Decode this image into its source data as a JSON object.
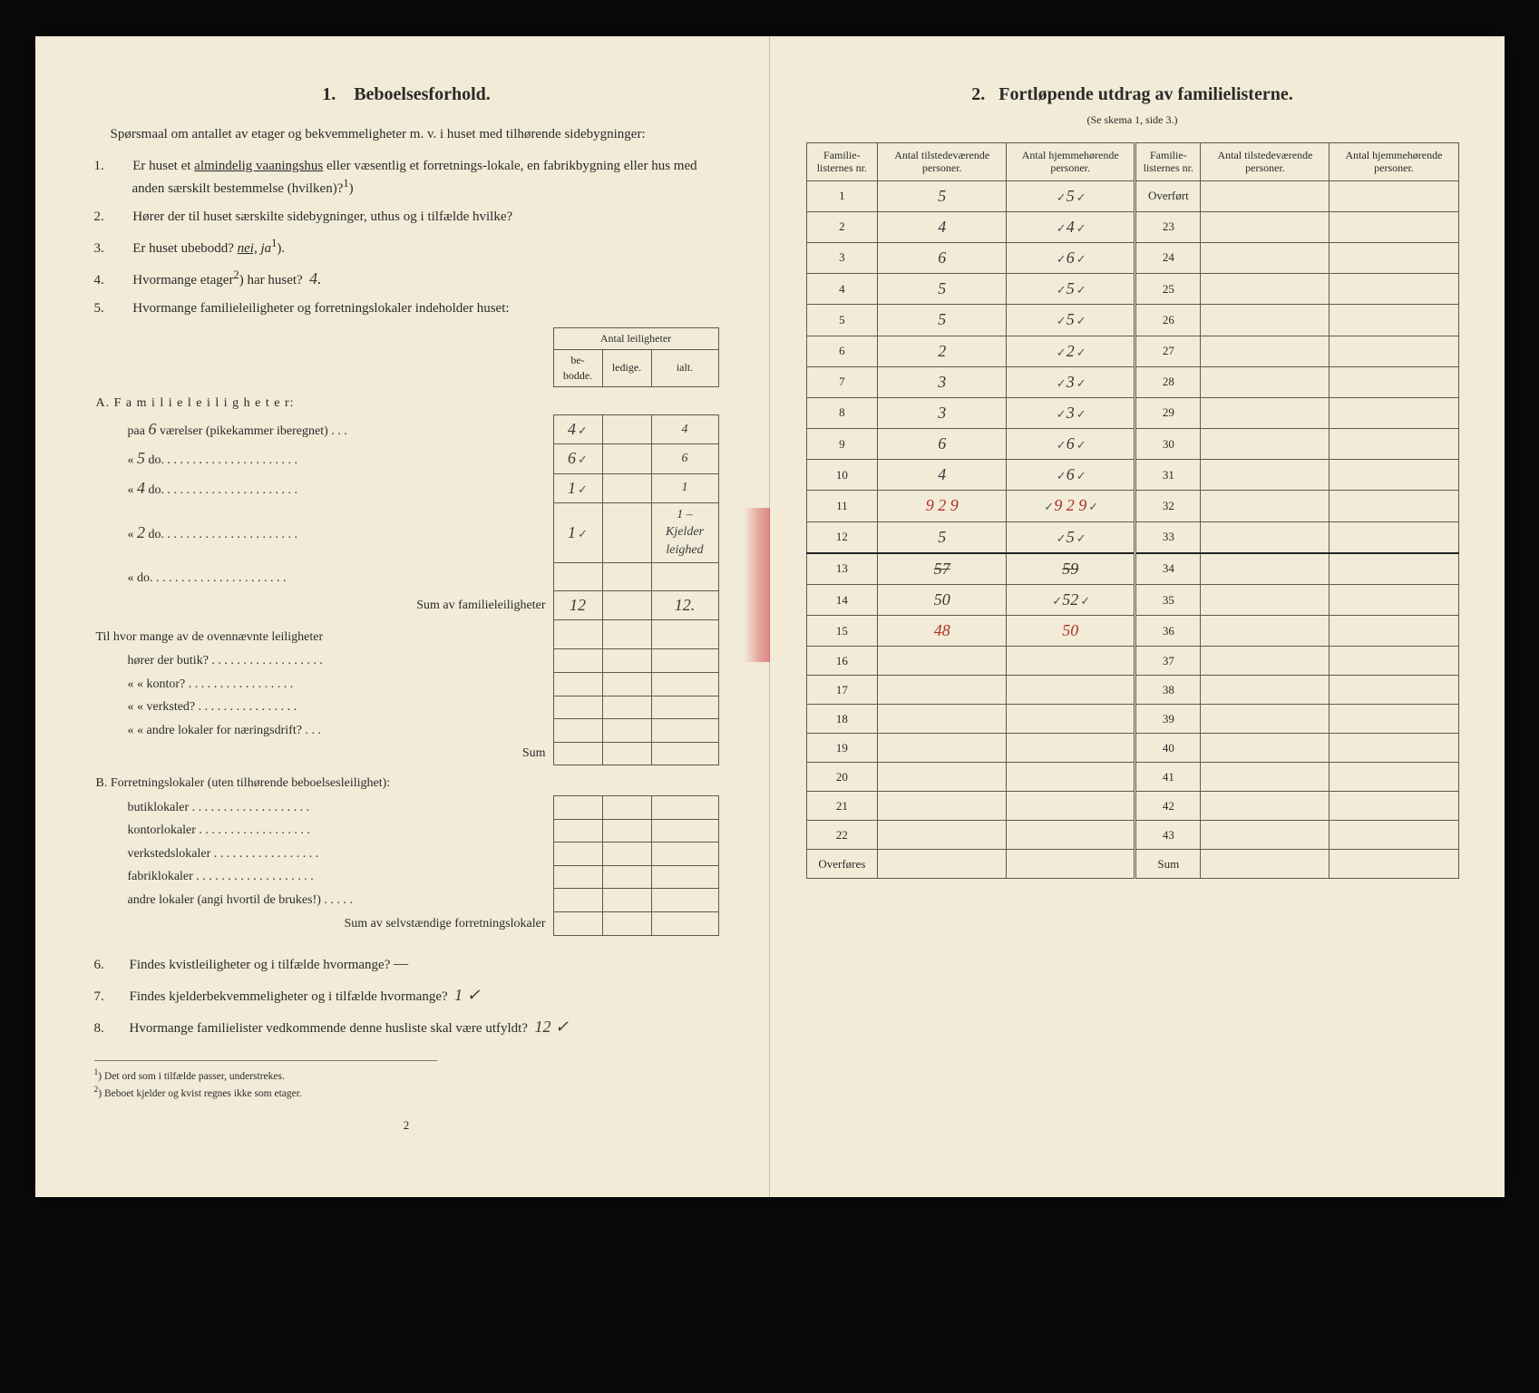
{
  "left": {
    "section_no": "1.",
    "section_title": "Beboelsesforhold.",
    "intro": "Spørsmaal om antallet av etager og bekvemmeligheter m. v. i huset med tilhørende sidebygninger:",
    "q1_pre": "Er huset et ",
    "q1_underlined": "almindelig vaaningshus",
    "q1_post": " eller væsentlig et forretnings-lokale, en fabrikbygning eller hus med anden særskilt bestemmelse (hvilken)?",
    "q1_sup": "1",
    "q2": "Hører der til huset særskilte sidebygninger, uthus og i tilfælde hvilke?",
    "q3_pre": "Er huset ubebodd?  ",
    "q3_nei": "nei,",
    "q3_ja": "ja",
    "q3_sup": "1",
    "q4_pre": "Hvormange etager",
    "q4_sup": "2",
    "q4_post": ") har huset?",
    "q4_ans": "4.",
    "q5": "Hvormange familieleiligheter og forretningslokaler indeholder huset:",
    "tbl_header_group": "Antal leiligheter",
    "tbl_h_be": "be-\nbodde.",
    "tbl_h_ledige": "ledige.",
    "tbl_h_ialt": "ialt.",
    "A_label": "A.  F a m i l i e l e i l i g h e t e r:",
    "A_rows": [
      {
        "pre": "paa",
        "rooms": "6",
        "post": "værelser (pikekammer iberegnet) . . .",
        "be": "4",
        "ledige": "",
        "ialt": "4"
      },
      {
        "pre": "«",
        "rooms": "5",
        "post": "do.  . . . . . . . . . . . . . . . . . . . . .",
        "be": "6",
        "ledige": "",
        "ialt": "6"
      },
      {
        "pre": "«",
        "rooms": "4",
        "post": "do.  . . . . . . . . . . . . . . . . . . . . .",
        "be": "1",
        "ledige": "",
        "ialt": "1"
      },
      {
        "pre": "«",
        "rooms": "2",
        "post": "do.  . . . . . . . . . . . . . . . . . . . . .",
        "be": "1",
        "ledige": "",
        "ialt": "1 – Kjelder leighed"
      },
      {
        "pre": "«",
        "rooms": "",
        "post": "do.  . . . . . . . . . . . . . . . . . . . . .",
        "be": "",
        "ledige": "",
        "ialt": ""
      }
    ],
    "A_sum_label": "Sum av familieleiligheter",
    "A_sum_be": "12",
    "A_sum_ialt": "12.",
    "mid_q_lead": "Til hvor mange av de ovennævnte leiligheter",
    "mid_rows": [
      "hører der butik? . . . . . . . . . . . . . . . . . .",
      "«      «   kontor? . . . . . . . . . . . . . . . . .",
      "«      «   verksted? . . . . . . . . . . . . . . . .",
      "«      «   andre lokaler for næringsdrift? . . ."
    ],
    "mid_sum": "Sum",
    "B_label": "B.  Forretningslokaler (uten tilhørende beboelsesleilighet):",
    "B_rows": [
      "butiklokaler . . . . . . . . . . . . . . . . . . .",
      "kontorlokaler  . . . . . . . . . . . . . . . . . .",
      "verkstedslokaler . . . . . . . . . . . . . . . . .",
      "fabriklokaler . . . . . . . . . . . . . . . . . . .",
      "andre lokaler (angi hvortil de brukes!) . . . . ."
    ],
    "B_sum": "Sum av selvstændige forretningslokaler",
    "q6": "Findes kvistleiligheter og i tilfælde hvormange?",
    "q6_ans": "—",
    "q7": "Findes kjelderbekvemmeligheter og i tilfælde hvormange?",
    "q7_ans": "1 ✓",
    "q8_pre": "Hvormange familielister vedkommende denne husliste skal være utfyldt?",
    "q8_ans": "12 ✓",
    "fn1": "Det ord som i tilfælde passer, understrekes.",
    "fn2": "Beboet kjelder og kvist regnes ikke som etager.",
    "pagenum": "2"
  },
  "right": {
    "section_no": "2.",
    "section_title": "Fortløpende utdrag av familielisterne.",
    "subnote": "(Se skema 1, side 3.)",
    "headers": {
      "nr": "Familie-\nlisternes\nnr.",
      "tilstede": "Antal\ntilstedeværende\npersoner.",
      "hjemme": "Antal\nhjemmehørende\npersoner."
    },
    "overfort": "Overført",
    "overfores": "Overføres",
    "sum": "Sum",
    "rows_left": [
      {
        "nr": "1",
        "a": "5",
        "b": "5",
        "tick": true
      },
      {
        "nr": "2",
        "a": "4",
        "b": "4",
        "tick": true,
        "a_strike": false,
        "a_bold": true
      },
      {
        "nr": "3",
        "a": "6",
        "b": "6",
        "tick": true
      },
      {
        "nr": "4",
        "a": "5",
        "b": "5",
        "tick": true
      },
      {
        "nr": "5",
        "a": "5",
        "b": "5",
        "tick": true
      },
      {
        "nr": "6",
        "a": "2",
        "b": "2",
        "tick": true
      },
      {
        "nr": "7",
        "a": "3",
        "b": "3",
        "tick": true
      },
      {
        "nr": "8",
        "a": "3",
        "b": "3",
        "tick": true
      },
      {
        "nr": "9",
        "a": "6",
        "b": "6",
        "tick": true
      },
      {
        "nr": "10",
        "a": "4",
        "b": "6",
        "tick": true
      },
      {
        "nr": "11",
        "a": "9 2 9",
        "b": "9 2 9",
        "red": true,
        "tick": true
      },
      {
        "nr": "12",
        "a": "5",
        "b": "5",
        "tick": true
      },
      {
        "nr": "13",
        "a": "57",
        "b": "59",
        "strike": true
      },
      {
        "nr": "14",
        "a": "50",
        "b": "52",
        "tick": true
      },
      {
        "nr": "15",
        "a": "48",
        "b": "50",
        "red": true
      },
      {
        "nr": "16",
        "a": "",
        "b": ""
      },
      {
        "nr": "17",
        "a": "",
        "b": ""
      },
      {
        "nr": "18",
        "a": "",
        "b": ""
      },
      {
        "nr": "19",
        "a": "",
        "b": ""
      },
      {
        "nr": "20",
        "a": "",
        "b": ""
      },
      {
        "nr": "21",
        "a": "",
        "b": ""
      },
      {
        "nr": "22",
        "a": "",
        "b": ""
      }
    ],
    "rows_right_nr": [
      "23",
      "24",
      "25",
      "26",
      "27",
      "28",
      "29",
      "30",
      "31",
      "32",
      "33",
      "34",
      "35",
      "36",
      "37",
      "38",
      "39",
      "40",
      "41",
      "42",
      "43"
    ]
  },
  "colors": {
    "paper": "#f2ebd8",
    "ink": "#2a2a28",
    "rule": "#5a5a52",
    "red": "#b03024",
    "background": "#0a0a0a"
  }
}
